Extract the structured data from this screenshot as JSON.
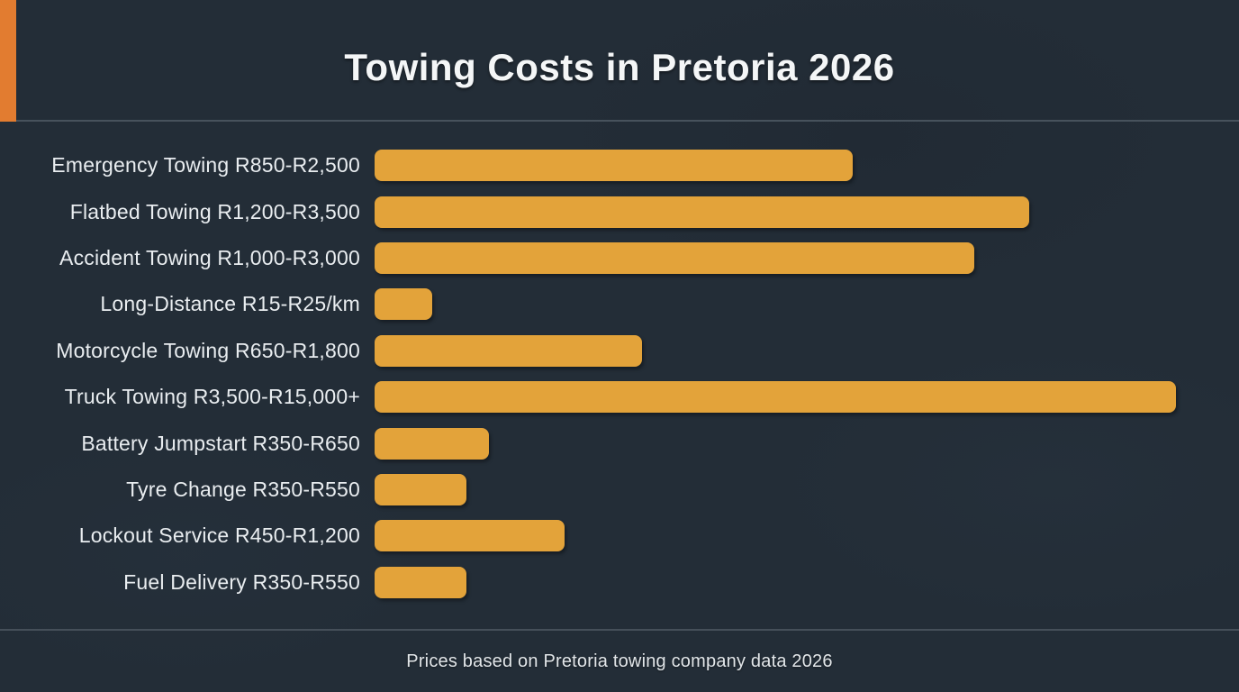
{
  "header": {
    "title": "Towing Costs in Pretoria 2026"
  },
  "footer": {
    "note": "Prices based on Pretoria towing company data 2026"
  },
  "colors": {
    "background": "#232d37",
    "accent_stripe": "#e27c30",
    "bar": "#e3a33a",
    "divider": "#47525c",
    "title_text": "#f4f6f7",
    "label_text": "#e9edf0"
  },
  "chart_data": {
    "type": "bar",
    "orientation": "horizontal",
    "title": "Towing Costs in Pretoria 2026",
    "subtitle": "",
    "xlabel": "",
    "ylabel": "",
    "grid": false,
    "legend": false,
    "value_axis_visible": false,
    "footnote": "Prices based on Pretoria towing company data 2026",
    "bar_color": "#e3a33a",
    "currency": "ZAR (R)",
    "rows": [
      {
        "label": "Emergency Towing R850-R2,500",
        "service": "Emergency Towing",
        "price_min": 850,
        "price_max": 2500,
        "unit": "R",
        "bar_pct": 59.7
      },
      {
        "label": "Flatbed Towing R1,200-R3,500",
        "service": "Flatbed Towing",
        "price_min": 1200,
        "price_max": 3500,
        "unit": "R",
        "bar_pct": 81.7
      },
      {
        "label": "Accident Towing R1,000-R3,000",
        "service": "Accident Towing",
        "price_min": 1000,
        "price_max": 3000,
        "unit": "R",
        "bar_pct": 74.8
      },
      {
        "label": "Long-Distance R15-R25/km",
        "service": "Long-Distance",
        "price_min": 15,
        "price_max": 25,
        "unit": "R/km",
        "bar_pct": 7.2
      },
      {
        "label": "Motorcycle Towing R650-R1,800",
        "service": "Motorcycle Towing",
        "price_min": 650,
        "price_max": 1800,
        "unit": "R",
        "bar_pct": 33.4
      },
      {
        "label": "Truck Towing R3,500-R15,000+",
        "service": "Truck Towing",
        "price_min": 3500,
        "price_max": 15000,
        "unit": "R",
        "open_ended": true,
        "bar_pct": 100
      },
      {
        "label": "Battery Jumpstart R350-R650",
        "service": "Battery Jumpstart",
        "price_min": 350,
        "price_max": 650,
        "unit": "R",
        "bar_pct": 14.3
      },
      {
        "label": "Tyre Change R350-R550",
        "service": "Tyre Change",
        "price_min": 350,
        "price_max": 550,
        "unit": "R",
        "bar_pct": 11.5
      },
      {
        "label": "Lockout Service R450-R1,200",
        "service": "Lockout Service",
        "price_min": 450,
        "price_max": 1200,
        "unit": "R",
        "bar_pct": 23.7
      },
      {
        "label": "Fuel Delivery R350-R550",
        "service": "Fuel Delivery",
        "price_min": 350,
        "price_max": 550,
        "unit": "R",
        "bar_pct": 11.5
      }
    ]
  }
}
